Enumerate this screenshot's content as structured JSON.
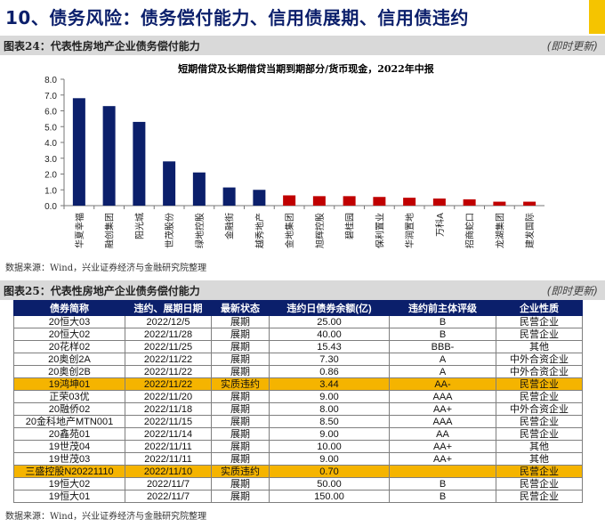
{
  "header": {
    "title": "10、债务风险：债务偿付能力、信用债展期、信用债违约",
    "accent_color": "#f5c400",
    "title_color": "#0b1f6b"
  },
  "figure24": {
    "title": "图表24：代表性房地产企业债务偿付能力",
    "update": "(即时更新)",
    "source": "数据来源：Wind，兴业证券经济与金融研究院整理"
  },
  "figure25": {
    "title": "图表25：代表性房地产企业债务偿付能力",
    "update": "(即时更新)",
    "source": "数据来源：Wind，兴业证券经济与金融研究院整理"
  },
  "chart_data": {
    "type": "bar",
    "title": "短期借贷及长期借贷当期到期部分/货币现金，2022年中报",
    "categories": [
      "华夏幸福",
      "融创集团",
      "阳光城",
      "世茂股份",
      "绿地控股",
      "金融街",
      "越秀地产",
      "金地集团",
      "旭辉控股",
      "碧桂园",
      "保利置业",
      "华润置地",
      "万科A",
      "招商蛇口",
      "龙湖集团",
      "建发国际"
    ],
    "values": [
      6.8,
      6.3,
      5.3,
      2.8,
      2.1,
      1.15,
      1.0,
      0.65,
      0.6,
      0.6,
      0.55,
      0.5,
      0.45,
      0.4,
      0.25,
      0.25
    ],
    "colors": [
      "#0b1f6b",
      "#0b1f6b",
      "#0b1f6b",
      "#0b1f6b",
      "#0b1f6b",
      "#0b1f6b",
      "#0b1f6b",
      "#c00000",
      "#c00000",
      "#c00000",
      "#c00000",
      "#c00000",
      "#c00000",
      "#c00000",
      "#c00000",
      "#c00000"
    ],
    "ylim": [
      0,
      8
    ],
    "yticks": [
      "0.0",
      "1.0",
      "2.0",
      "3.0",
      "4.0",
      "5.0",
      "6.0",
      "7.0",
      "8.0"
    ],
    "xlabel": "",
    "ylabel": "",
    "grid": false
  },
  "table": {
    "headers": [
      "债券简称",
      "违约、展期日期",
      "最新状态",
      "违约日债券余额(亿)",
      "违约前主体评级",
      "企业性质"
    ],
    "rows": [
      [
        "20恒大03",
        "2022/12/5",
        "展期",
        "25.00",
        "B",
        "民营企业"
      ],
      [
        "20恒大02",
        "2022/11/28",
        "展期",
        "40.00",
        "B",
        "民营企业"
      ],
      [
        "20花样02",
        "2022/11/25",
        "展期",
        "15.43",
        "BBB-",
        "其他"
      ],
      [
        "20奥创2A",
        "2022/11/22",
        "展期",
        "7.30",
        "A",
        "中外合资企业"
      ],
      [
        "20奥创2B",
        "2022/11/22",
        "展期",
        "0.86",
        "A",
        "中外合资企业"
      ],
      [
        "19鸿坤01",
        "2022/11/22",
        "实质违约",
        "3.44",
        "AA-",
        "民营企业"
      ],
      [
        "正荣03优",
        "2022/11/20",
        "展期",
        "9.00",
        "AAA",
        "民营企业"
      ],
      [
        "20融侨02",
        "2022/11/18",
        "展期",
        "8.00",
        "AA+",
        "中外合资企业"
      ],
      [
        "20金科地产MTN001",
        "2022/11/15",
        "展期",
        "8.50",
        "AAA",
        "民营企业"
      ],
      [
        "20鑫苑01",
        "2022/11/14",
        "展期",
        "9.00",
        "AA",
        "民营企业"
      ],
      [
        "19世茂04",
        "2022/11/11",
        "展期",
        "10.00",
        "AA+",
        "其他"
      ],
      [
        "19世茂03",
        "2022/11/11",
        "展期",
        "9.00",
        "AA+",
        "其他"
      ],
      [
        "三盛控股N20221110",
        "2022/11/10",
        "实质违约",
        "0.70",
        "",
        "民营企业"
      ],
      [
        "19恒大02",
        "2022/11/7",
        "展期",
        "50.00",
        "B",
        "民营企业"
      ],
      [
        "19恒大01",
        "2022/11/7",
        "展期",
        "150.00",
        "B",
        "民营企业"
      ]
    ],
    "highlight_status": "实质违约",
    "highlight_color": "#f5b400"
  }
}
